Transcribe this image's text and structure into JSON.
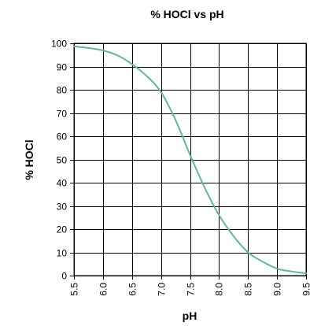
{
  "chart_data": {
    "type": "line",
    "title": "% HOCl vs pH",
    "xlabel": "pH",
    "ylabel": "% HOCl",
    "xlim": [
      5.5,
      9.5
    ],
    "ylim": [
      0,
      100
    ],
    "x_ticks": [
      "5.5",
      "6.0",
      "6.5",
      "7.0",
      "7.5",
      "8.0",
      "8.5",
      "9.0",
      "9.5"
    ],
    "y_ticks": [
      "0",
      "10",
      "20",
      "30",
      "40",
      "50",
      "60",
      "70",
      "80",
      "90",
      "100"
    ],
    "grid": true,
    "legend": "none",
    "series": [
      {
        "color": "#5fb89a",
        "x": [
          5.5,
          5.75,
          6.0,
          6.25,
          6.5,
          6.75,
          7.0,
          7.25,
          7.5,
          7.75,
          8.0,
          8.25,
          8.5,
          8.75,
          9.0,
          9.25,
          9.5
        ],
        "y": [
          98.7,
          98.0,
          96.9,
          94.8,
          91.0,
          86.0,
          79.0,
          67.0,
          52.0,
          38.0,
          26.0,
          17.0,
          10.0,
          6.0,
          3.0,
          1.8,
          1.0
        ]
      }
    ]
  }
}
